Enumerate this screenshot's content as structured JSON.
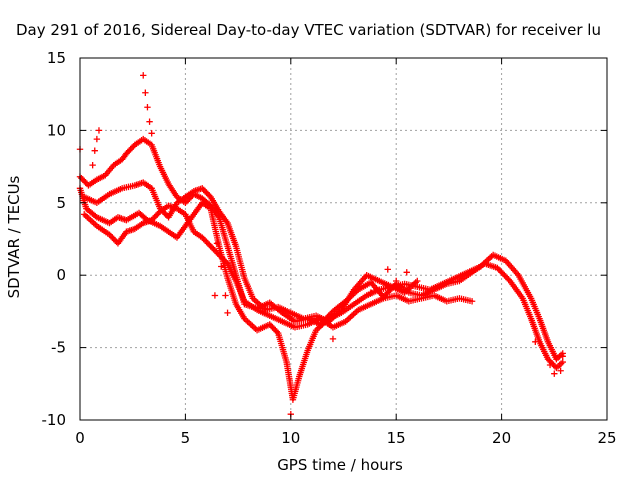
{
  "chart_data": {
    "type": "scatter",
    "title": "Day 291 of 2016, Sidereal Day-to-day VTEC variation (SDTVAR) for receiver lu",
    "xlabel": "GPS time / hours",
    "ylabel": "SDTVAR / TECUs",
    "xlim": [
      0,
      25
    ],
    "ylim": [
      -10,
      15
    ],
    "xticks": [
      0,
      5,
      10,
      15,
      20,
      25
    ],
    "yticks": [
      -10,
      -5,
      0,
      5,
      10,
      15
    ],
    "grid": true,
    "marker": "+",
    "color": "#ff0000",
    "series": [
      {
        "points": [
          [
            0,
            6.8
          ],
          [
            0.4,
            6.2
          ],
          [
            0.8,
            6.6
          ],
          [
            1.2,
            6.9
          ],
          [
            1.6,
            7.6
          ],
          [
            2.0,
            8.0
          ],
          [
            2.2,
            8.4
          ],
          [
            2.6,
            9.0
          ],
          [
            3.0,
            9.4
          ],
          [
            3.4,
            9.0
          ],
          [
            3.8,
            7.5
          ],
          [
            4.2,
            6.3
          ],
          [
            4.6,
            5.4
          ],
          [
            5.0,
            5.0
          ],
          [
            5.4,
            5.6
          ],
          [
            5.8,
            5.3
          ],
          [
            6.2,
            4.8
          ],
          [
            6.6,
            4.0
          ],
          [
            7.0,
            2.0
          ],
          [
            7.4,
            0.0
          ],
          [
            7.8,
            -2.0
          ],
          [
            8.4,
            -2.3
          ],
          [
            9.0,
            -1.9
          ],
          [
            9.6,
            -2.6
          ],
          [
            10.2,
            -3.2
          ],
          [
            10.8,
            -3.0
          ],
          [
            11.4,
            -3.4
          ],
          [
            12.0,
            -2.5
          ],
          [
            12.6,
            -1.8
          ],
          [
            13.2,
            -1.0
          ],
          [
            13.8,
            -0.5
          ],
          [
            14.4,
            -1.5
          ],
          [
            15.0,
            -0.6
          ],
          [
            15.6,
            -1.2
          ],
          [
            16.2,
            -1.4
          ],
          [
            16.8,
            -1.0
          ],
          [
            17.4,
            -0.6
          ],
          [
            18.0,
            -0.4
          ],
          [
            18.6,
            0.2
          ],
          [
            19.2,
            0.8
          ],
          [
            19.8,
            0.5
          ],
          [
            20.4,
            -0.4
          ],
          [
            21.0,
            -1.6
          ],
          [
            21.4,
            -3.0
          ],
          [
            21.8,
            -4.6
          ],
          [
            22.2,
            -5.8
          ],
          [
            22.6,
            -6.4
          ],
          [
            22.9,
            -6.0
          ]
        ]
      },
      {
        "points": [
          [
            0,
            6.0
          ],
          [
            0.3,
            4.6
          ],
          [
            0.8,
            4.0
          ],
          [
            1.4,
            3.6
          ],
          [
            1.8,
            4.0
          ],
          [
            2.2,
            3.8
          ],
          [
            2.8,
            4.3
          ],
          [
            3.2,
            3.8
          ],
          [
            3.8,
            3.4
          ],
          [
            4.2,
            3.0
          ],
          [
            4.6,
            2.6
          ],
          [
            5.0,
            3.4
          ],
          [
            5.4,
            4.2
          ],
          [
            5.8,
            5.0
          ],
          [
            6.2,
            4.6
          ],
          [
            6.6,
            2.0
          ],
          [
            7.0,
            -0.2
          ],
          [
            7.4,
            -2.0
          ],
          [
            7.8,
            -3.0
          ],
          [
            8.4,
            -3.8
          ],
          [
            9.0,
            -3.4
          ],
          [
            9.4,
            -4.0
          ],
          [
            9.8,
            -6.0
          ],
          [
            10.1,
            -8.6
          ],
          [
            10.4,
            -7.0
          ],
          [
            10.8,
            -5.2
          ],
          [
            11.2,
            -3.8
          ],
          [
            11.8,
            -3.0
          ],
          [
            12.4,
            -2.6
          ],
          [
            13.0,
            -2.0
          ],
          [
            13.6,
            -1.4
          ],
          [
            14.2,
            -1.0
          ],
          [
            14.8,
            -0.8
          ],
          [
            15.4,
            -0.6
          ],
          [
            16.0,
            -0.8
          ],
          [
            16.6,
            -1.0
          ],
          [
            17.2,
            -0.6
          ],
          [
            17.8,
            -0.2
          ],
          [
            18.4,
            0.2
          ],
          [
            19.0,
            0.6
          ],
          [
            19.6,
            1.4
          ],
          [
            20.2,
            1.0
          ],
          [
            20.8,
            0.0
          ],
          [
            21.4,
            -1.6
          ],
          [
            21.8,
            -3.0
          ],
          [
            22.2,
            -4.6
          ],
          [
            22.6,
            -5.8
          ],
          [
            22.9,
            -5.4
          ]
        ]
      },
      {
        "points": [
          [
            0.2,
            4.2
          ],
          [
            0.8,
            3.4
          ],
          [
            1.4,
            2.8
          ],
          [
            1.8,
            2.2
          ],
          [
            2.2,
            3.0
          ],
          [
            2.6,
            3.2
          ],
          [
            3.0,
            3.6
          ],
          [
            3.4,
            3.8
          ],
          [
            3.8,
            4.4
          ],
          [
            4.2,
            4.8
          ],
          [
            4.6,
            4.6
          ],
          [
            5.0,
            4.2
          ],
          [
            5.4,
            3.0
          ],
          [
            5.8,
            2.6
          ],
          [
            6.2,
            2.0
          ],
          [
            6.6,
            1.4
          ],
          [
            7.0,
            0.8
          ],
          [
            7.4,
            -0.4
          ],
          [
            7.8,
            -1.8
          ],
          [
            8.4,
            -2.4
          ],
          [
            9.0,
            -2.8
          ],
          [
            9.6,
            -3.2
          ],
          [
            10.2,
            -3.6
          ],
          [
            10.8,
            -3.4
          ],
          [
            11.4,
            -3.0
          ],
          [
            12.0,
            -3.6
          ],
          [
            12.6,
            -3.2
          ],
          [
            13.2,
            -2.4
          ],
          [
            13.8,
            -2.0
          ],
          [
            14.4,
            -1.6
          ],
          [
            15.0,
            -1.4
          ],
          [
            15.6,
            -1.8
          ],
          [
            16.2,
            -1.6
          ],
          [
            16.8,
            -1.4
          ],
          [
            17.4,
            -1.8
          ],
          [
            18.0,
            -1.6
          ],
          [
            18.6,
            -1.8
          ]
        ]
      },
      {
        "points": [
          [
            0.2,
            5.4
          ],
          [
            0.8,
            5.0
          ],
          [
            1.4,
            5.6
          ],
          [
            2.0,
            6.0
          ],
          [
            2.6,
            6.2
          ],
          [
            3.0,
            6.4
          ],
          [
            3.4,
            6.0
          ],
          [
            3.8,
            4.6
          ],
          [
            4.2,
            4.0
          ],
          [
            4.6,
            5.0
          ],
          [
            5.0,
            5.4
          ],
          [
            5.4,
            5.8
          ],
          [
            5.8,
            6.0
          ],
          [
            6.2,
            5.4
          ],
          [
            6.6,
            4.4
          ],
          [
            7.0,
            3.6
          ],
          [
            7.4,
            2.0
          ],
          [
            7.8,
            -0.2
          ],
          [
            8.2,
            -1.6
          ],
          [
            8.8,
            -2.4
          ],
          [
            9.4,
            -2.2
          ],
          [
            10.0,
            -2.6
          ],
          [
            10.6,
            -3.0
          ],
          [
            11.2,
            -2.8
          ],
          [
            11.8,
            -3.2
          ],
          [
            12.4,
            -2.4
          ],
          [
            13.0,
            -1.0
          ],
          [
            13.6,
            0.0
          ],
          [
            14.2,
            -0.4
          ],
          [
            14.8,
            -0.8
          ],
          [
            15.4,
            -1.2
          ],
          [
            16.0,
            -0.4
          ]
        ]
      },
      {
        "points": [
          [
            0.6,
            7.6
          ],
          [
            0.7,
            8.6
          ],
          [
            0.8,
            9.4
          ],
          [
            0.9,
            10.0
          ],
          [
            0.0,
            8.7
          ],
          [
            3.0,
            13.8
          ],
          [
            3.1,
            12.6
          ],
          [
            3.2,
            11.6
          ],
          [
            3.3,
            10.6
          ],
          [
            3.4,
            9.8
          ],
          [
            6.5,
            2.2
          ],
          [
            6.7,
            0.6
          ],
          [
            6.9,
            -1.4
          ],
          [
            7.0,
            -2.6
          ],
          [
            6.4,
            -1.4
          ],
          [
            12.0,
            -4.4
          ],
          [
            13.8,
            -1.2
          ],
          [
            14.6,
            0.4
          ],
          [
            15.0,
            -0.4
          ],
          [
            15.5,
            0.2
          ],
          [
            10.0,
            -9.6
          ],
          [
            21.6,
            -4.6
          ],
          [
            22.5,
            -6.8
          ],
          [
            22.8,
            -6.6
          ],
          [
            22.9,
            -5.6
          ],
          [
            22.3,
            -6.2
          ]
        ]
      }
    ]
  }
}
